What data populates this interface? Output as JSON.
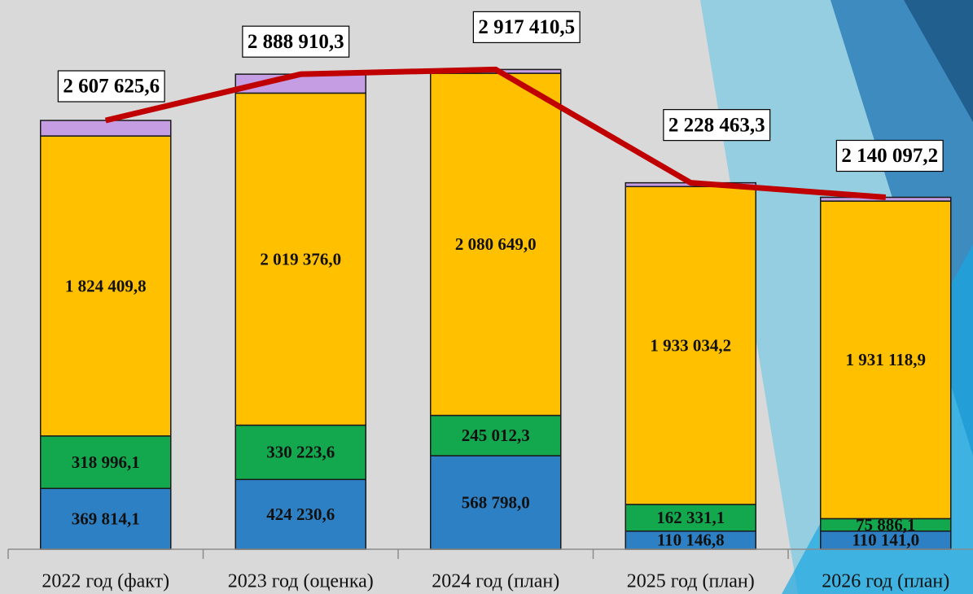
{
  "chart_data": {
    "type": "bar",
    "categories": [
      "2022 год (факт)",
      "2023 год (оценка)",
      "2024 год (план)",
      "2025 год (план)",
      "2026 год (план)"
    ],
    "ylim": [
      0,
      3340000
    ],
    "series": [
      {
        "color": "#2e80c4",
        "values": [
          369814.1,
          424230.6,
          568798.0,
          110146.8,
          110141.0
        ],
        "value_labels": [
          "369 814,1",
          "424 230,6",
          "568 798,0",
          "110 146,8",
          "110 141,0"
        ]
      },
      {
        "color": "#14a84e",
        "values": [
          318996.1,
          330223.6,
          245012.3,
          162331.1,
          75886.1
        ],
        "value_labels": [
          "318 996,1",
          "330 223,6",
          "245 012,3",
          "162 331,1",
          "75 886,1"
        ]
      },
      {
        "color": "#ffc000",
        "values": [
          1824409.8,
          2019376.0,
          2080649.0,
          1933034.2,
          1931118.9
        ],
        "value_labels": [
          "1 824 409,8",
          "2 019 376,0",
          "2 080 649,0",
          "1 933 034,2",
          "1 931 118,9"
        ]
      },
      {
        "color": "#c49de2",
        "values": [
          94405.6,
          115080.1,
          22951.2,
          22951.2,
          22951.2
        ]
      }
    ],
    "line": {
      "color": "#c00000",
      "values": [
        2607625.6,
        2888910.3,
        2917410.5,
        2228463.3,
        2140097.2
      ],
      "value_labels": [
        "2 607 625,6",
        "2 888 910,3",
        "2 917 410,5",
        "2 228 463,3",
        "2 140 097,2"
      ]
    }
  }
}
